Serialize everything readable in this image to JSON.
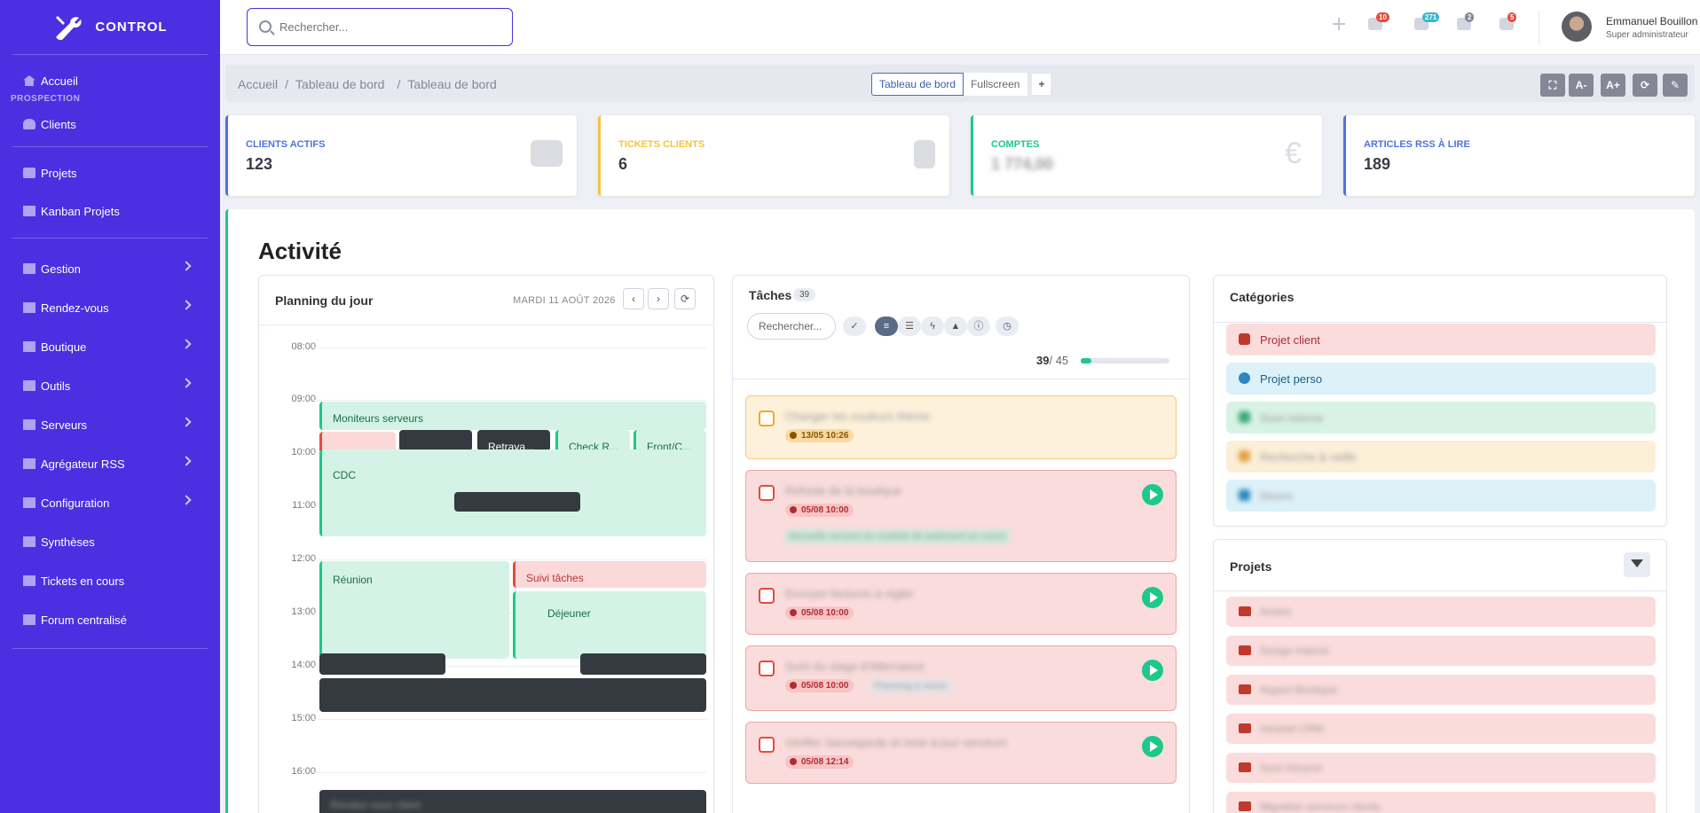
{
  "brand": {
    "name": "CONTROL"
  },
  "sidebar": {
    "items": [
      {
        "label": "Accueil"
      },
      {
        "label": "Clients"
      },
      {
        "label": "Projets"
      },
      {
        "label": "Kanban Projets"
      },
      {
        "label": "Gestion"
      },
      {
        "label": "Rendez-vous"
      },
      {
        "label": "Boutique"
      },
      {
        "label": "Outils"
      },
      {
        "label": "Serveurs"
      },
      {
        "label": "Agrégateur RSS"
      },
      {
        "label": "Configuration"
      },
      {
        "label": "Synthèses"
      },
      {
        "label": "Tickets en cours"
      },
      {
        "label": "Forum centralisé"
      }
    ],
    "heading": "PROSPECTION"
  },
  "topbar": {
    "search_placeholder": "Rechercher...",
    "badges": [
      {
        "icon": "alert-icon",
        "count": "10",
        "color": "#e74a3b"
      },
      {
        "icon": "message-icon",
        "count": "271",
        "color": "#36b9cc"
      },
      {
        "icon": "document-icon",
        "count": "2",
        "color": "#858796"
      },
      {
        "icon": "bell-icon",
        "count": "5",
        "color": "#e74a3b"
      }
    ],
    "user_name": "Emmanuel Bouillon",
    "user_role": "Super administrateur"
  },
  "breadcrumb": {
    "items": [
      "Accueil",
      "Tableau de bord",
      "Tableau de bord"
    ]
  },
  "view_tabs": {
    "active": "Tableau de bord",
    "other": "Fullscreen",
    "add": "+"
  },
  "tools": [
    "⛶",
    "A-",
    "A+",
    "⟳",
    "✎"
  ],
  "stats": [
    {
      "label": "CLIENTS ACTIFS",
      "value": "123",
      "color": "#4e73df"
    },
    {
      "label": "TICKETS CLIENTS",
      "value": "6",
      "color": "#f6c23e"
    },
    {
      "label": "COMPTES",
      "value": "1 774,00",
      "color": "#1cc88a"
    },
    {
      "label": "ARTICLES RSS À LIRE",
      "value": "189",
      "color": "#4e73df"
    }
  ],
  "activity": {
    "title": "Activité",
    "planning": {
      "title": "Planning du jour",
      "date": "MARDI 11 AOÛT 2026",
      "hours": [
        "08:00",
        "09:00",
        "10:00",
        "11:00",
        "12:00",
        "13:00",
        "14:00",
        "15:00",
        "16:00"
      ],
      "events": [
        {
          "label": "Moniteurs serveurs"
        },
        {
          "label": "Check R..."
        },
        {
          "label": "Front/C..."
        },
        {
          "label": "Retrava..."
        },
        {
          "label": "CDC"
        },
        {
          "label": "Réunion"
        },
        {
          "label": "Déjeuner"
        },
        {
          "label": "Rendez-vous client"
        },
        {
          "label": "Suivi tâches"
        }
      ]
    },
    "tasks": {
      "title": "Tâches",
      "count": "39",
      "search_placeholder": "Rechercher...",
      "progress_done": "39",
      "progress_total": "/ 45",
      "items": [
        {
          "title": "Changer les couleurs thème",
          "due": "13/05 10:26",
          "style": "orange"
        },
        {
          "title": "Refonte de la boutique",
          "due": "05/08 10:00",
          "style": "red",
          "extra": "Nouvelle version du module de paiement en cours"
        },
        {
          "title": "Envoyer factures à régler",
          "due": "05/08 10:00",
          "style": "red"
        },
        {
          "title": "Suivi du stage d'Alternance",
          "due": "05/08 10:00",
          "style": "red",
          "tag": "Planning à revoir"
        },
        {
          "title": "Vérifier Sauvegarde et mise à jour serveurs",
          "due": "05/08 12:14",
          "style": "red"
        }
      ]
    },
    "categories": {
      "title": "Catégories",
      "items": [
        {
          "label": "Projet client",
          "bg": "#fbdcdc",
          "color": "#b02a37",
          "icon": "#c0392b"
        },
        {
          "label": "Projet perso",
          "bg": "#dcf1f8",
          "color": "#1f5f8b",
          "icon": "#2e86c1"
        },
        {
          "label": "Suivi interne",
          "bg": "#d8f3e6",
          "color": "#2a7a55",
          "icon": "#3aa776"
        },
        {
          "label": "Recherche & veille",
          "bg": "#fcefd8",
          "color": "#b07a2a",
          "icon": "#e0a34a"
        },
        {
          "label": "Divers",
          "bg": "#dcf1f8",
          "color": "#1f5f8b",
          "icon": "#2e86c1"
        }
      ]
    },
    "projects": {
      "title": "Projets",
      "items": [
        {
          "label": "Ambre"
        },
        {
          "label": "Design Interne"
        },
        {
          "label": "Aspect Boutique"
        },
        {
          "label": "Intranet CRM"
        },
        {
          "label": "Suivi Intranet"
        },
        {
          "label": "Migration serveurs clients"
        }
      ]
    }
  }
}
